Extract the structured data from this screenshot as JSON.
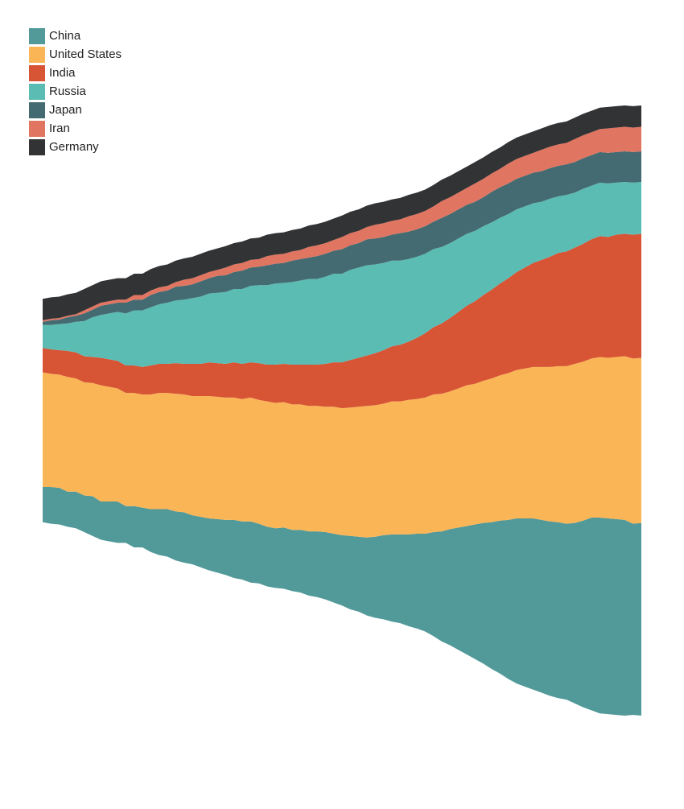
{
  "chart_data": {
    "type": "area",
    "title": "",
    "xlabel": "",
    "ylabel": "",
    "offset": "silhouette (streamgraph)",
    "legend_position": "top-left",
    "grid": false,
    "axes_visible": false,
    "series": [
      {
        "name": "China",
        "color": "#52999a",
        "values": [
          23,
          24,
          24,
          23,
          24,
          24,
          26,
          25,
          26,
          27,
          24,
          27,
          26,
          28,
          30,
          31,
          32,
          33,
          32,
          33,
          34,
          35,
          36,
          38,
          38,
          40,
          39,
          39,
          39,
          40,
          40,
          41,
          42,
          43,
          44,
          45,
          46,
          48,
          49,
          51,
          53,
          55,
          57,
          58,
          60,
          62,
          64,
          68,
          72,
          76,
          80,
          84,
          88,
          92,
          96,
          100,
          104,
          108,
          110,
          112,
          113,
          114,
          115,
          115,
          118,
          122,
          126,
          128,
          128,
          128,
          128,
          125,
          126
        ]
      },
      {
        "name": "United States",
        "color": "#fab557",
        "values": [
          75,
          74,
          74,
          75,
          74,
          74,
          74,
          76,
          75,
          74,
          74,
          74,
          74,
          75,
          76,
          76,
          77,
          77,
          78,
          79,
          80,
          80,
          80,
          80,
          80,
          81,
          81,
          82,
          82,
          82,
          82,
          82,
          82,
          82,
          82,
          83,
          83,
          84,
          85,
          86,
          86,
          86,
          87,
          87,
          88,
          88,
          89,
          90,
          90,
          90,
          91,
          92,
          92,
          93,
          94,
          95,
          96,
          97,
          98,
          99,
          100,
          101,
          102,
          103,
          104,
          104,
          104,
          105,
          105,
          106,
          107,
          108,
          108
        ]
      },
      {
        "name": "India",
        "color": "#d75435",
        "values": [
          16,
          16,
          16,
          17,
          17,
          17,
          17,
          18,
          18,
          18,
          18,
          18,
          18,
          19,
          19,
          19,
          20,
          20,
          21,
          21,
          22,
          22,
          22,
          23,
          23,
          23,
          24,
          24,
          25,
          25,
          26,
          26,
          27,
          27,
          28,
          29,
          30,
          31,
          32,
          33,
          34,
          35,
          36,
          37,
          38,
          40,
          42,
          44,
          46,
          48,
          50,
          52,
          54,
          56,
          58,
          60,
          62,
          64,
          66,
          68,
          70,
          72,
          74,
          75,
          76,
          77,
          78,
          79,
          79,
          80,
          80,
          81,
          81
        ]
      },
      {
        "name": "Russia",
        "color": "#5bbcb3",
        "values": [
          15,
          16,
          17,
          18,
          20,
          23,
          26,
          28,
          30,
          32,
          34,
          36,
          37,
          38,
          39,
          40,
          41,
          42,
          43,
          44,
          45,
          46,
          47,
          48,
          49,
          50,
          51,
          52,
          53,
          53,
          54,
          55,
          56,
          56,
          57,
          58,
          58,
          59,
          59,
          59,
          58,
          57,
          56,
          55,
          54,
          53,
          52,
          51,
          50,
          49,
          48,
          47,
          46,
          45,
          44,
          43,
          42,
          41,
          40,
          39,
          38,
          38,
          37,
          37,
          36,
          36,
          35,
          35,
          35,
          34,
          34,
          34,
          34
        ]
      },
      {
        "name": "Japan",
        "color": "#456b72",
        "values": [
          2,
          3,
          3,
          4,
          4,
          5,
          5,
          6,
          6,
          6,
          7,
          7,
          7,
          8,
          8,
          8,
          9,
          9,
          9,
          10,
          10,
          11,
          11,
          11,
          12,
          12,
          12,
          13,
          13,
          13,
          14,
          14,
          14,
          15,
          15,
          15,
          16,
          16,
          16,
          17,
          17,
          17,
          17,
          18,
          18,
          18,
          18,
          18,
          19,
          19,
          19,
          19,
          19,
          19,
          20,
          20,
          20,
          20,
          20,
          20,
          20,
          20,
          20,
          20,
          20,
          20,
          20,
          20,
          20,
          20,
          20,
          20,
          20
        ]
      },
      {
        "name": "Iran",
        "color": "#e07561",
        "values": [
          1,
          1,
          1,
          1,
          1,
          2,
          2,
          2,
          2,
          2,
          2,
          3,
          3,
          3,
          3,
          3,
          3,
          4,
          4,
          4,
          4,
          4,
          5,
          5,
          5,
          5,
          5,
          6,
          6,
          6,
          6,
          6,
          7,
          7,
          7,
          7,
          8,
          8,
          8,
          8,
          9,
          9,
          9,
          9,
          10,
          10,
          10,
          10,
          11,
          11,
          11,
          11,
          12,
          12,
          12,
          12,
          13,
          13,
          13,
          13,
          14,
          14,
          14,
          14,
          15,
          15,
          15,
          15,
          16,
          16,
          16,
          16,
          16
        ]
      },
      {
        "name": "Germany",
        "color": "#323335",
        "values": [
          14,
          14,
          14,
          14,
          14,
          14,
          14,
          14,
          14,
          14,
          14,
          14,
          14,
          14,
          14,
          14,
          14,
          14,
          14,
          14,
          14,
          14,
          14,
          14,
          14,
          14,
          14,
          14,
          14,
          14,
          14,
          14,
          14,
          14,
          14,
          14,
          14,
          14,
          14,
          14,
          14,
          14,
          14,
          14,
          14,
          14,
          14,
          14,
          14,
          14,
          14,
          14,
          14,
          14,
          14,
          14,
          14,
          14,
          14,
          14,
          14,
          14,
          14,
          14,
          14,
          14,
          14,
          14,
          14,
          14,
          14,
          14,
          14
        ]
      }
    ]
  }
}
